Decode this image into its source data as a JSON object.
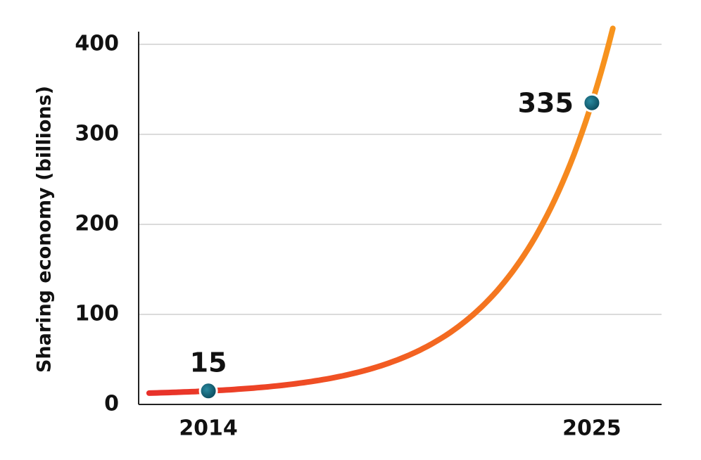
{
  "chart_data": {
    "type": "line",
    "y_label": "Sharing economy (billions)",
    "x": [
      2014,
      2025
    ],
    "values": [
      15,
      335
    ],
    "color": "#0e5b6e",
    "xlim": [
      2012,
      2027
    ],
    "xticks": [
      2014,
      2025
    ],
    "ylim": [
      0,
      400
    ],
    "yticks": [
      0,
      100,
      200,
      300,
      400
    ],
    "grid": true
  }
}
